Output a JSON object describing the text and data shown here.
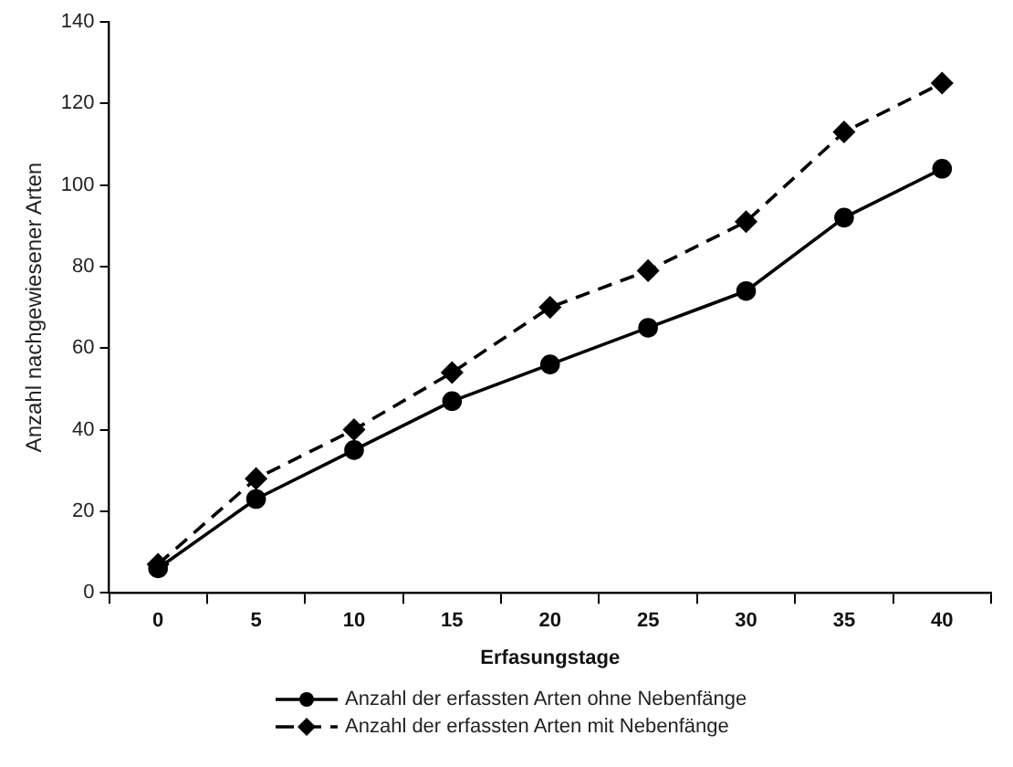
{
  "chart_data": {
    "type": "line",
    "xlabel": "Erfasungstage",
    "ylabel": "Anzahl nachgewiesener Arten",
    "categories": [
      "0",
      "5",
      "10",
      "15",
      "20",
      "25",
      "30",
      "35",
      "40"
    ],
    "series": [
      {
        "name": "Anzahl der erfassten Arten ohne Nebenfänge",
        "color": "#000000",
        "marker": "circle",
        "line_style": "solid",
        "values": [
          6,
          23,
          35,
          47,
          56,
          65,
          74,
          92,
          104
        ]
      },
      {
        "name": "Anzahl der erfassten Arten mit Nebenfänge",
        "color": "#000000",
        "marker": "diamond",
        "line_style": "dashed",
        "values": [
          7,
          28,
          40,
          54,
          70,
          79,
          91,
          113,
          125
        ]
      }
    ],
    "ylim": [
      0,
      140
    ],
    "yticks": [
      0,
      20,
      40,
      60,
      80,
      100,
      120,
      140
    ],
    "grid": false,
    "legend": "bottom"
  }
}
